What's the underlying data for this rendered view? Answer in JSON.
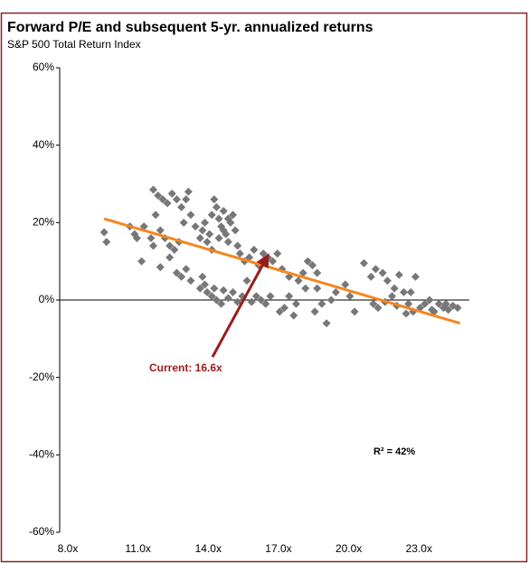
{
  "chart_data": {
    "type": "scatter",
    "title": "Forward P/E and subsequent 5-yr. annualized returns",
    "subtitle": "S&P 500 Total Return Index",
    "color": "#777777",
    "x": [
      9.9,
      10.0,
      11.0,
      11.2,
      11.3,
      11.5,
      11.6,
      12.0,
      12.2,
      12.4,
      12.6,
      12.8,
      13.0,
      13.2,
      13.4,
      13.5,
      12.1,
      12.3,
      12.5,
      12.7,
      12.9,
      13.1,
      12.0,
      11.9,
      12.3,
      12.7,
      13.0,
      13.2,
      13.4,
      13.6,
      13.3,
      13.6,
      13.8,
      14.0,
      14.1,
      14.2,
      14.3,
      14.4,
      14.5,
      14.6,
      14.7,
      14.8,
      14.9,
      15.0,
      15.1,
      15.2,
      15.3,
      15.4,
      15.5,
      15.6,
      14.5,
      14.8,
      15.0,
      15.2,
      14.2,
      14.3,
      14.5,
      14.7,
      14.9,
      15.0,
      15.2,
      15.4,
      15.6,
      15.8,
      14.0,
      14.1,
      14.6,
      15.7,
      15.9,
      16.1,
      16.3,
      16.5,
      16.7,
      16.9,
      17.1,
      17.3,
      16.0,
      16.2,
      16.4,
      16.6,
      16.8,
      17.0,
      17.4,
      17.6,
      17.8,
      18.0,
      17.5,
      17.8,
      18.2,
      18.4,
      18.6,
      18.8,
      19.0,
      19.2,
      19.4,
      19.6,
      19.8,
      18.1,
      18.5,
      18.9,
      19.0,
      20.2,
      20.4,
      20.6,
      21.0,
      21.3,
      21.5,
      21.8,
      22.0,
      22.3,
      22.5,
      22.7,
      22.9,
      21.6,
      21.9,
      22.2,
      22.4,
      23.0,
      23.2,
      23.4,
      23.6,
      23.8,
      24.0,
      24.2,
      24.4,
      24.6,
      24.8,
      25.0,
      23.1,
      22.8,
      21.4,
      23.9,
      24.5
    ],
    "values": [
      17.5,
      15,
      19,
      17,
      16,
      10,
      19,
      28.5,
      27,
      26,
      25,
      27.5,
      26,
      24,
      26,
      28,
      22,
      18,
      16,
      14,
      13,
      15,
      14,
      16,
      8.5,
      11,
      7,
      6,
      8,
      5,
      20,
      22,
      19,
      16,
      18,
      20,
      15,
      17,
      22,
      26,
      24,
      21,
      19,
      23,
      17,
      15,
      20,
      22,
      18,
      14,
      13,
      16,
      18,
      21,
      4,
      2,
      1,
      0,
      -1,
      2.5,
      0.5,
      2,
      -0.5,
      1,
      3,
      6,
      3,
      12,
      10,
      11,
      13,
      9,
      12,
      11,
      10,
      12,
      5,
      -0.5,
      1,
      0,
      -1,
      1,
      -3,
      -2,
      1,
      -4,
      8,
      6,
      5,
      7,
      10,
      9,
      3,
      -1,
      -6,
      0,
      2,
      -1,
      3,
      -3,
      7,
      4,
      1,
      -3,
      9.5,
      6,
      8,
      7,
      5,
      3,
      6.5,
      2,
      -1,
      -2,
      -0.5,
      1,
      -1.5,
      2,
      6,
      -2,
      -1,
      0,
      -3,
      -1,
      -2,
      -2.5,
      -1.5,
      -2,
      -3,
      -3.5,
      -1,
      -2.5,
      -1
    ],
    "trendline": {
      "color": "#f5871f",
      "x": [
        9.9,
        25.1
      ],
      "values": [
        21,
        -6
      ]
    },
    "annotations": [
      "Current: 16.6x",
      "R² = 42%"
    ],
    "xlim": [
      8,
      25.5
    ],
    "ylim": [
      -60,
      60
    ],
    "xticks": [
      {
        "value": 8,
        "label": "8.0x"
      },
      {
        "value": 11,
        "label": "11.0x"
      },
      {
        "value": 14,
        "label": "14.0x"
      },
      {
        "value": 17,
        "label": "17.0x"
      },
      {
        "value": 20,
        "label": "20.0x"
      },
      {
        "value": 23,
        "label": "23.0x"
      }
    ],
    "yticks": [
      {
        "value": -60,
        "label": "-60%"
      },
      {
        "value": -40,
        "label": "-40%"
      },
      {
        "value": -20,
        "label": "-20%"
      },
      {
        "value": 0,
        "label": "0%"
      },
      {
        "value": 20,
        "label": "20%"
      },
      {
        "value": 40,
        "label": "40%"
      },
      {
        "value": 60,
        "label": "60%"
      }
    ]
  }
}
